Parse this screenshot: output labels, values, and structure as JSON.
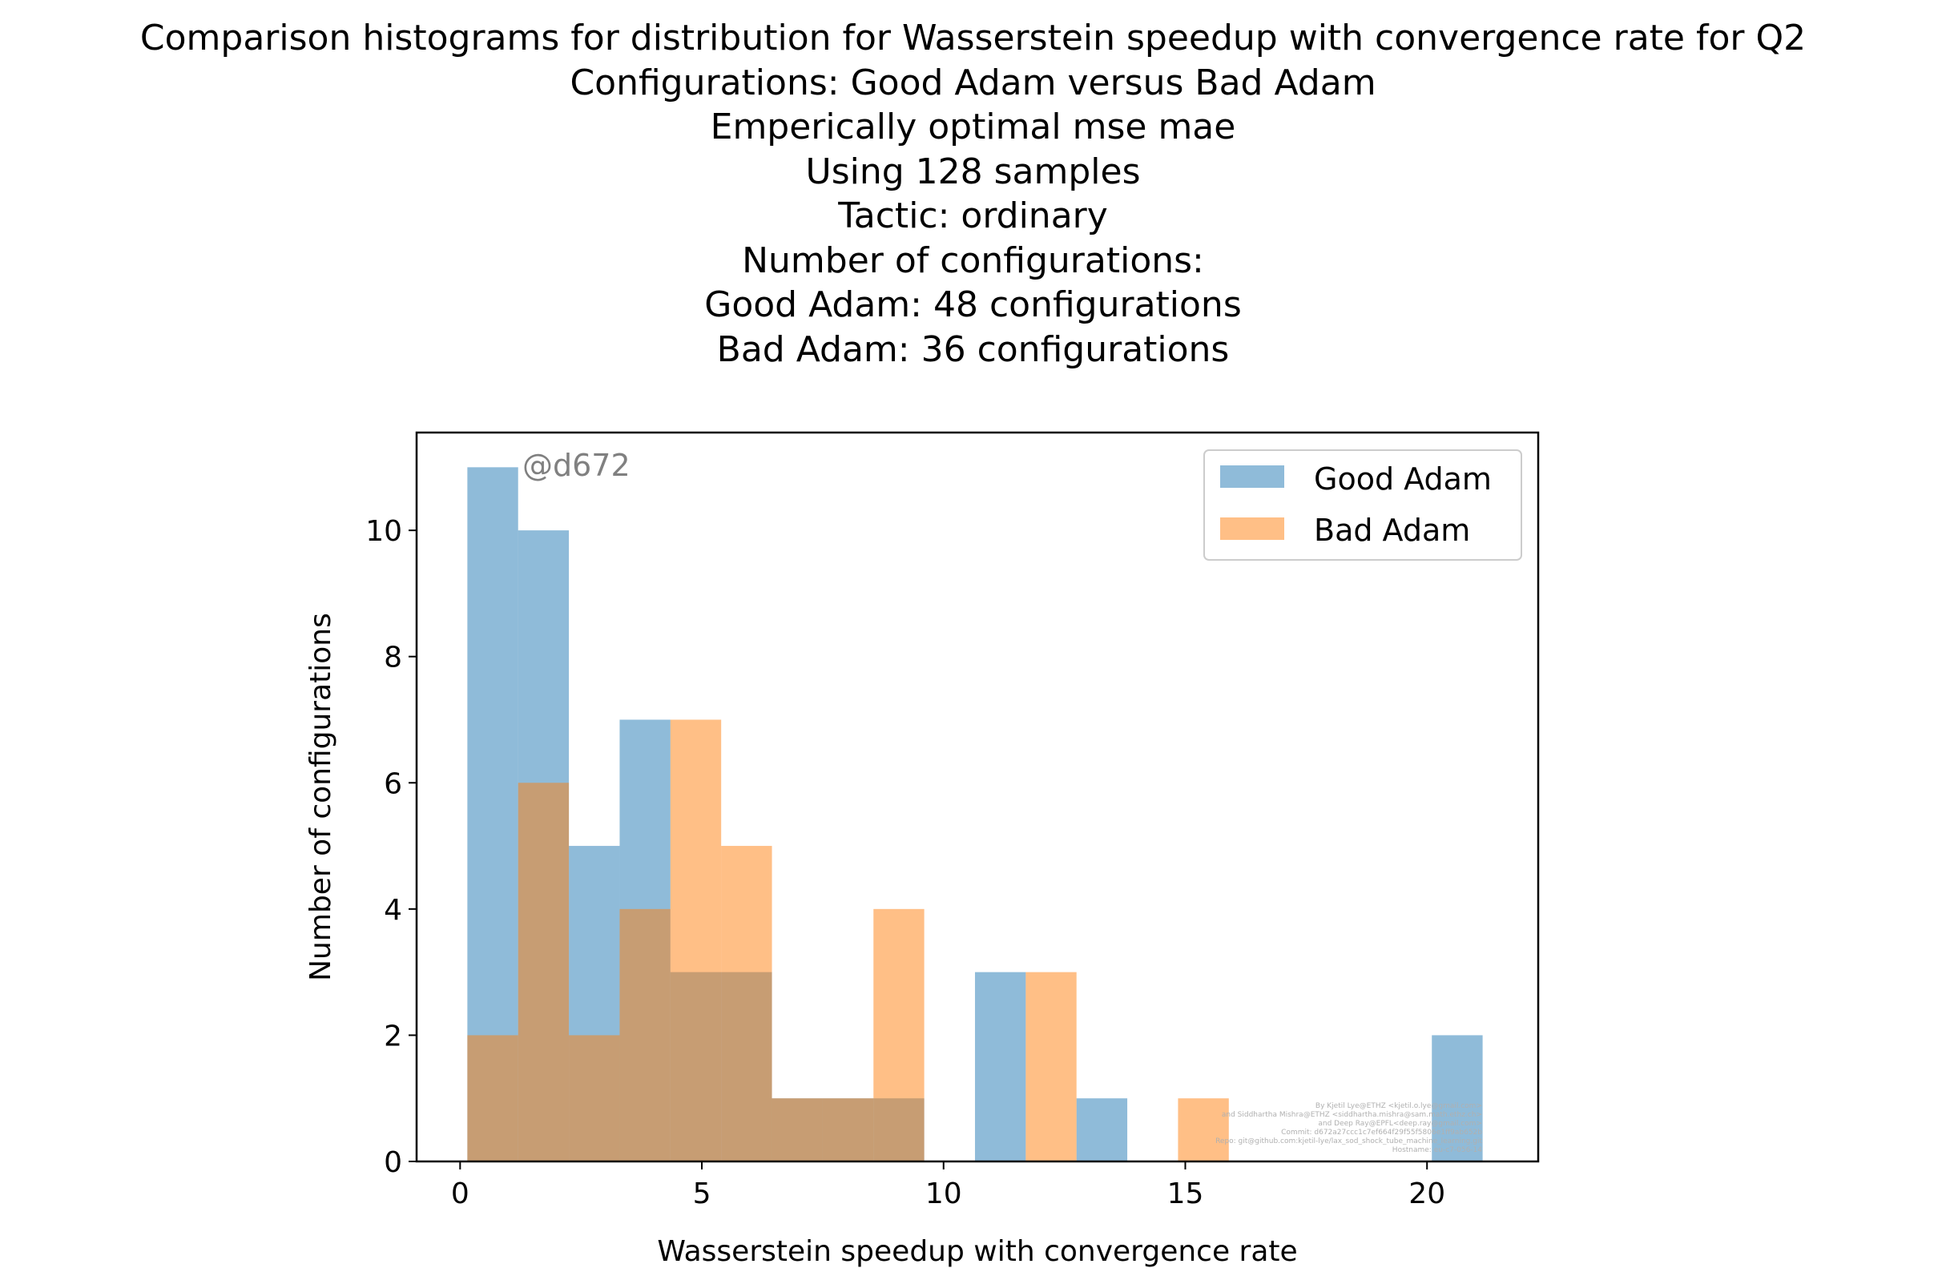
{
  "chart_data": {
    "type": "bar",
    "title_lines": [
      "Comparison histograms for distribution for Wasserstein speedup with convergence rate for Q2",
      "Configurations: Good Adam versus Bad Adam",
      "Emperically optimal mse mae",
      "Using 128 samples",
      "Tactic: ordinary",
      "Number of configurations:",
      "Good Adam: 48 configurations",
      "Bad Adam: 36 configurations"
    ],
    "xlabel": "Wasserstein speedup with convergence rate",
    "ylabel": "Number of configurations",
    "xlim": [
      -0.9,
      22.3
    ],
    "ylim": [
      0,
      11.55
    ],
    "xticks": [
      0,
      5,
      10,
      15,
      20
    ],
    "yticks": [
      0,
      2,
      4,
      6,
      8,
      10
    ],
    "grid": false,
    "legend_position": "top-right",
    "annotation": "@d672",
    "series": [
      {
        "name": "Good Adam",
        "color": "#1f77b4",
        "opacity": 0.5,
        "bins": [
          {
            "x0": 0.15,
            "x1": 1.2,
            "count": 11
          },
          {
            "x0": 1.2,
            "x1": 2.25,
            "count": 10
          },
          {
            "x0": 2.25,
            "x1": 3.3,
            "count": 5
          },
          {
            "x0": 3.3,
            "x1": 4.35,
            "count": 7
          },
          {
            "x0": 4.35,
            "x1": 5.4,
            "count": 3
          },
          {
            "x0": 5.4,
            "x1": 6.45,
            "count": 3
          },
          {
            "x0": 6.45,
            "x1": 7.5,
            "count": 1
          },
          {
            "x0": 7.5,
            "x1": 8.55,
            "count": 1
          },
          {
            "x0": 8.55,
            "x1": 9.6,
            "count": 1
          },
          {
            "x0": 9.6,
            "x1": 10.65,
            "count": 0
          },
          {
            "x0": 10.65,
            "x1": 11.7,
            "count": 3
          },
          {
            "x0": 11.7,
            "x1": 12.75,
            "count": 0
          },
          {
            "x0": 12.75,
            "x1": 13.8,
            "count": 1
          },
          {
            "x0": 13.8,
            "x1": 14.85,
            "count": 0
          },
          {
            "x0": 14.85,
            "x1": 15.9,
            "count": 0
          },
          {
            "x0": 15.9,
            "x1": 16.95,
            "count": 0
          },
          {
            "x0": 16.95,
            "x1": 18.0,
            "count": 0
          },
          {
            "x0": 18.0,
            "x1": 19.05,
            "count": 0
          },
          {
            "x0": 19.05,
            "x1": 20.1,
            "count": 0
          },
          {
            "x0": 20.1,
            "x1": 21.15,
            "count": 2
          }
        ]
      },
      {
        "name": "Bad Adam",
        "color": "#ff7f0e",
        "opacity": 0.5,
        "bins": [
          {
            "x0": 0.15,
            "x1": 1.2,
            "count": 2
          },
          {
            "x0": 1.2,
            "x1": 2.25,
            "count": 6
          },
          {
            "x0": 2.25,
            "x1": 3.3,
            "count": 2
          },
          {
            "x0": 3.3,
            "x1": 4.35,
            "count": 4
          },
          {
            "x0": 4.35,
            "x1": 5.4,
            "count": 7
          },
          {
            "x0": 5.4,
            "x1": 6.45,
            "count": 5
          },
          {
            "x0": 6.45,
            "x1": 7.5,
            "count": 1
          },
          {
            "x0": 7.5,
            "x1": 8.55,
            "count": 1
          },
          {
            "x0": 8.55,
            "x1": 9.6,
            "count": 4
          },
          {
            "x0": 9.6,
            "x1": 10.65,
            "count": 0
          },
          {
            "x0": 10.65,
            "x1": 11.7,
            "count": 0
          },
          {
            "x0": 11.7,
            "x1": 12.75,
            "count": 3
          },
          {
            "x0": 12.75,
            "x1": 13.8,
            "count": 0
          },
          {
            "x0": 13.8,
            "x1": 14.85,
            "count": 0
          },
          {
            "x0": 14.85,
            "x1": 15.9,
            "count": 1
          },
          {
            "x0": 15.9,
            "x1": 16.95,
            "count": 0
          },
          {
            "x0": 16.95,
            "x1": 18.0,
            "count": 0
          },
          {
            "x0": 18.0,
            "x1": 19.05,
            "count": 0
          },
          {
            "x0": 19.05,
            "x1": 20.1,
            "count": 0
          },
          {
            "x0": 20.1,
            "x1": 21.15,
            "count": 0
          }
        ]
      }
    ],
    "credits": [
      "By Kjetil Lye@ETHZ <kjetil.o.lye@gmail.com>",
      "and Siddhartha Mishra@ETHZ <siddhartha.mishra@sam.math.ethz.ch>",
      "and Deep Ray@EPFL<deep.ray@gmail.com>",
      "Commit: d672a27ccc1c7ef664f29f55f5806e1ff9ab652b",
      "Repo: git@github.com:kjetil-lye/lax_sod_shock_tube_machine_learning.git",
      "Hostname: eu-c7-056-14"
    ]
  }
}
